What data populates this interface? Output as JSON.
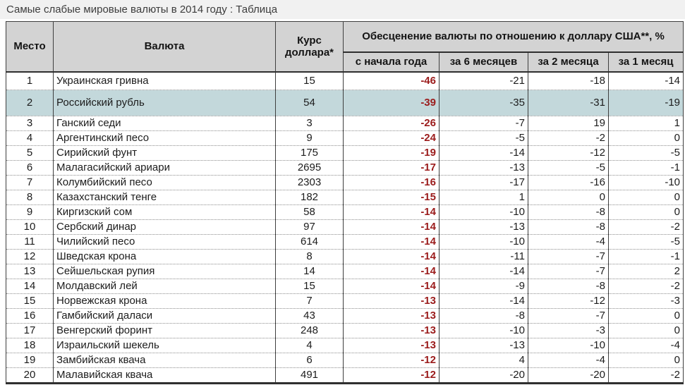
{
  "page_title": "Самые слабые мировые валюты в 2014 году : Таблица",
  "colors": {
    "title_bar_bg": "#f1f1f1",
    "header_bg": "#d3d3d3",
    "highlight_row_bg": "#c3d8db",
    "ytd_value_color": "#9b1b1b",
    "text_color": "#1c1c1c"
  },
  "chart_data": {
    "type": "table",
    "title": "Самые слабые мировые валюты в 2014 году : Таблица",
    "group_header": "Обесценение валюты по отношению к доллару США**, %",
    "columns": [
      "Место",
      "Валюта",
      "Курс доллара*",
      "с начала года",
      "за 6 месяцев",
      "за 2 месяца",
      "за 1 месяц"
    ],
    "highlighted_row_rank": 2,
    "rows": [
      [
        1,
        "Украинская гривна",
        15,
        -46,
        -21,
        -18,
        -14
      ],
      [
        2,
        "Российский рубль",
        54,
        -39,
        -35,
        -31,
        -19
      ],
      [
        3,
        "Ганский седи",
        3,
        -26,
        -7,
        19,
        1
      ],
      [
        4,
        "Аргентинский песо",
        9,
        -24,
        -5,
        -2,
        0
      ],
      [
        5,
        "Сирийский фунт",
        175,
        -19,
        -14,
        -12,
        -5
      ],
      [
        6,
        "Малагасийский ариари",
        2695,
        -17,
        -13,
        -5,
        -1
      ],
      [
        7,
        "Колумбийский песо",
        2303,
        -16,
        -17,
        -16,
        -10
      ],
      [
        8,
        "Казахстанский тенге",
        182,
        -15,
        1,
        0,
        0
      ],
      [
        9,
        "Киргизский сом",
        58,
        -14,
        -10,
        -8,
        0
      ],
      [
        10,
        "Сербский динар",
        97,
        -14,
        -13,
        -8,
        -2
      ],
      [
        11,
        "Чилийский песо",
        614,
        -14,
        -10,
        -4,
        -5
      ],
      [
        12,
        "Шведская крона",
        8,
        -14,
        -11,
        -7,
        -1
      ],
      [
        13,
        "Сейшельская рупия",
        14,
        -14,
        -14,
        -7,
        2
      ],
      [
        14,
        "Молдавский лей",
        15,
        -14,
        -9,
        -8,
        -2
      ],
      [
        15,
        "Норвежская крона",
        7,
        -13,
        -14,
        -12,
        -3
      ],
      [
        16,
        "Гамбийский даласи",
        43,
        -13,
        -8,
        -7,
        0
      ],
      [
        17,
        "Венгерский форинт",
        248,
        -13,
        -10,
        -3,
        0
      ],
      [
        18,
        "Израильский шекель",
        4,
        -13,
        -13,
        -10,
        -4
      ],
      [
        19,
        "Замбийская квача",
        6,
        -12,
        4,
        -4,
        0
      ],
      [
        20,
        "Малавийская квача",
        491,
        -12,
        -20,
        -20,
        -2
      ]
    ]
  }
}
